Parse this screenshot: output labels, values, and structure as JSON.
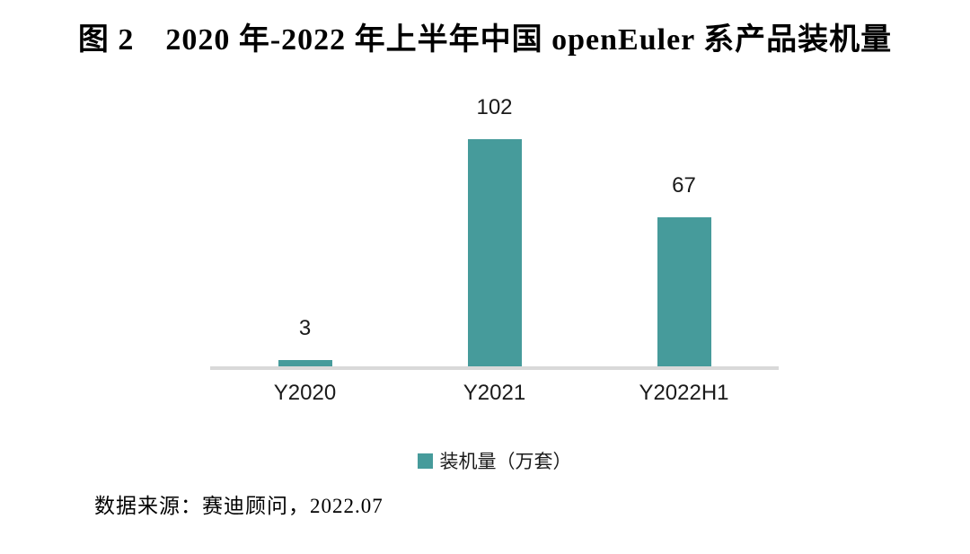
{
  "figure": {
    "title": "图 2　2020 年-2022 年上半年中国 openEuler 系产品装机量",
    "source_note": "数据来源：赛迪顾问，2022.07"
  },
  "legend": {
    "label": "装机量（万套）"
  },
  "colors": {
    "bar": "#469b9b",
    "axis_line": "#d9d9d9",
    "background": "#ffffff"
  },
  "chart_data": {
    "type": "bar",
    "title": "图 2　2020 年-2022 年上半年中国 openEuler 系产品装机量",
    "categories": [
      "Y2020",
      "Y2021",
      "Y2022H1"
    ],
    "values": [
      3,
      102,
      67
    ],
    "series": [
      {
        "name": "装机量（万套）",
        "values": [
          3,
          102,
          67
        ]
      }
    ],
    "data_labels": [
      "3",
      "102",
      "67"
    ],
    "xlabel": "",
    "ylabel": "",
    "ylim": [
      0,
      110
    ],
    "grid": false,
    "y_axis_visible": false,
    "legend_position": "bottom",
    "source": "数据来源：赛迪顾问，2022.07"
  }
}
